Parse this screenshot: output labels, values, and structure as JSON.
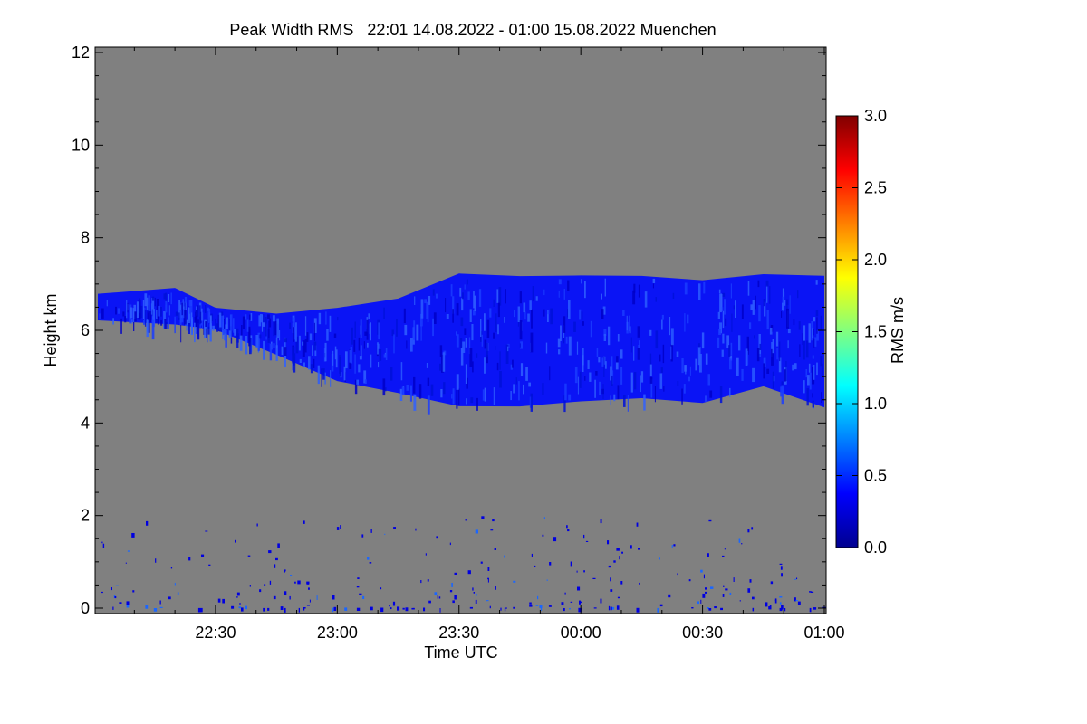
{
  "chart_data": {
    "type": "heatmap",
    "title": "Peak Width RMS   22:01 14.08.2022 - 01:00 15.08.2022 Muenchen",
    "xlabel": "Time UTC",
    "ylabel": "Height km",
    "xlim": [
      "22:01",
      "01:00"
    ],
    "ylim": [
      0,
      12
    ],
    "x_ticks": [
      "22:30",
      "23:00",
      "23:30",
      "00:00",
      "00:30",
      "01:00"
    ],
    "y_ticks": [
      "0",
      "2",
      "4",
      "6",
      "8",
      "10",
      "12"
    ],
    "background_color": "#808080",
    "grid": false,
    "colorbar": {
      "label": "RMS m/s",
      "range": [
        0.0,
        3.0
      ],
      "ticks": [
        "0.0",
        "0.5",
        "1.0",
        "1.5",
        "2.0",
        "2.5",
        "3.0"
      ],
      "colormap": [
        "#00008f",
        "#0000ff",
        "#0080ff",
        "#00ffff",
        "#80ff80",
        "#ffff00",
        "#ff8000",
        "#ff0000",
        "#800000"
      ]
    },
    "cloud_layer": {
      "color_value_typical_m_s": 0.4,
      "boundary": [
        {
          "time": "22:01",
          "base_km": 6.2,
          "top_km": 6.8
        },
        {
          "time": "22:20",
          "base_km": 6.1,
          "top_km": 6.9
        },
        {
          "time": "22:30",
          "base_km": 6.0,
          "top_km": 6.5
        },
        {
          "time": "22:45",
          "base_km": 5.5,
          "top_km": 6.4
        },
        {
          "time": "23:00",
          "base_km": 4.9,
          "top_km": 6.5
        },
        {
          "time": "23:15",
          "base_km": 4.6,
          "top_km": 6.7
        },
        {
          "time": "23:30",
          "base_km": 4.4,
          "top_km": 7.2
        },
        {
          "time": "23:45",
          "base_km": 4.4,
          "top_km": 7.2
        },
        {
          "time": "00:00",
          "base_km": 4.5,
          "top_km": 7.2
        },
        {
          "time": "00:15",
          "base_km": 4.5,
          "top_km": 7.2
        },
        {
          "time": "00:30",
          "base_km": 4.4,
          "top_km": 7.1
        },
        {
          "time": "00:45",
          "base_km": 4.8,
          "top_km": 7.2
        },
        {
          "time": "01:00",
          "base_km": 4.3,
          "top_km": 7.2
        }
      ]
    },
    "low_level_echoes_km": [
      0.0,
      2.0
    ]
  }
}
